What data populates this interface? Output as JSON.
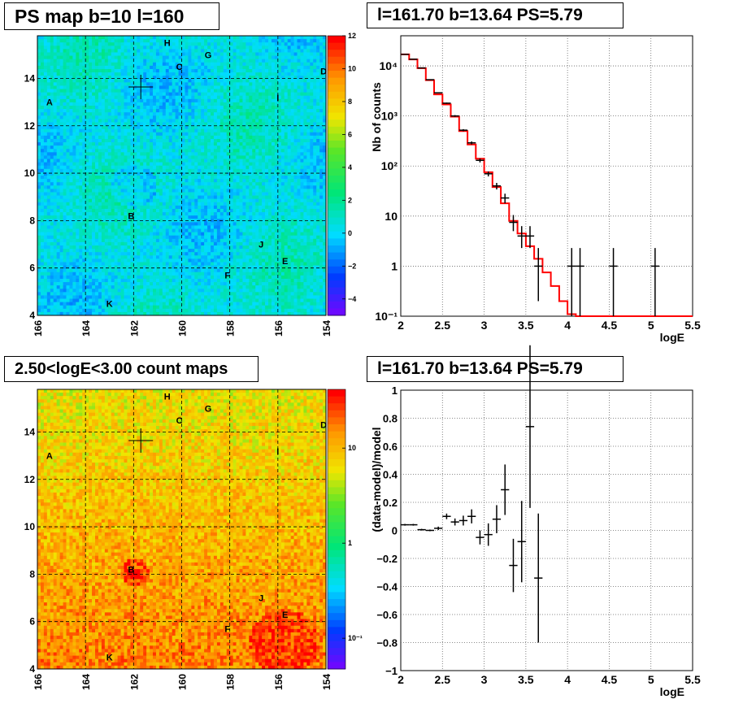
{
  "panels": {
    "ps_map": {
      "title": "PS map b=10 l=160"
    },
    "spectrum": {
      "title": "l=161.70 b=13.64 PS=5.79"
    },
    "count_map": {
      "title": "2.50<logE<3.00 count maps"
    },
    "residual": {
      "title": "l=161.70 b=13.64 PS=5.79"
    }
  },
  "colors": {
    "model_line": "#ff0000",
    "data_points": "#000000",
    "ps_map_base": "#00e0f0",
    "count_map_base": "#f0d000"
  },
  "chart_data": [
    {
      "type": "heatmap",
      "name": "ps_map",
      "title": "PS map b=10 l=160",
      "xlabel": "",
      "ylabel": "",
      "xlim": [
        166,
        154
      ],
      "ylim": [
        4,
        15.8
      ],
      "x_ticks": [
        "166",
        "164",
        "162",
        "160",
        "158",
        "156",
        "154"
      ],
      "y_ticks": [
        "4",
        "6",
        "8",
        "10",
        "12",
        "14"
      ],
      "colorbar": {
        "min": -5,
        "max": 12,
        "ticks": [
          "12",
          "10",
          "8",
          "6",
          "4",
          "2",
          "0",
          "−2",
          "−4"
        ]
      },
      "grid": true,
      "marker": {
        "l": 161.7,
        "b": 13.64
      },
      "source_labels": [
        {
          "label": "H",
          "l": 160.6,
          "b": 15.5
        },
        {
          "label": "G",
          "l": 158.9,
          "b": 15.0
        },
        {
          "label": "C",
          "l": 160.1,
          "b": 14.5
        },
        {
          "label": "D",
          "l": 154.1,
          "b": 14.3
        },
        {
          "label": "A",
          "l": 165.5,
          "b": 13.0
        },
        {
          "label": "I",
          "l": 156.0,
          "b": 13.2
        },
        {
          "label": "B",
          "l": 162.1,
          "b": 8.2
        },
        {
          "label": "J",
          "l": 156.7,
          "b": 7.0
        },
        {
          "label": "E",
          "l": 155.7,
          "b": 6.3
        },
        {
          "label": "F",
          "l": 158.1,
          "b": 5.7
        },
        {
          "label": "K",
          "l": 163.0,
          "b": 4.5
        }
      ]
    },
    {
      "type": "line",
      "name": "spectrum",
      "title": "l=161.70 b=13.64 PS=5.79",
      "xlabel": "logE",
      "ylabel": "Nb of counts",
      "xlim": [
        2,
        5.5
      ],
      "ylim": [
        0.1,
        40000
      ],
      "y_scale": "log",
      "x_ticks": [
        "2",
        "2.5",
        "3",
        "3.5",
        "4",
        "4.5",
        "5",
        "5.5"
      ],
      "y_ticks": [
        "10⁻¹",
        "1",
        "10",
        "10²",
        "10³",
        "10⁴"
      ],
      "grid": true,
      "series": [
        {
          "name": "model",
          "style": "step",
          "bin_edges": [
            2.0,
            2.1,
            2.2,
            2.3,
            2.4,
            2.5,
            2.6,
            2.7,
            2.8,
            2.9,
            3.0,
            3.1,
            3.2,
            3.3,
            3.4,
            3.5,
            3.6,
            3.7,
            3.8,
            3.9,
            4.0,
            4.1,
            4.2,
            5.5
          ],
          "values": [
            17000,
            13500,
            9000,
            5200,
            2700,
            1700,
            970,
            500,
            270,
            140,
            75,
            38,
            18,
            8,
            4.5,
            2.5,
            1.4,
            0.75,
            0.4,
            0.2,
            0.11,
            0.1,
            0.1
          ]
        },
        {
          "name": "data",
          "style": "points",
          "points": [
            {
              "x": 2.05,
              "y": 17000,
              "ylo": 17000,
              "yhi": 17000
            },
            {
              "x": 2.15,
              "y": 13600,
              "ylo": 13600,
              "yhi": 13600
            },
            {
              "x": 2.25,
              "y": 9100,
              "ylo": 9100,
              "yhi": 9100
            },
            {
              "x": 2.35,
              "y": 5300,
              "ylo": 5300,
              "yhi": 5300
            },
            {
              "x": 2.45,
              "y": 2900,
              "ylo": 2900,
              "yhi": 2900
            },
            {
              "x": 2.55,
              "y": 1800,
              "ylo": 1750,
              "yhi": 1850
            },
            {
              "x": 2.65,
              "y": 1000,
              "ylo": 960,
              "yhi": 1040
            },
            {
              "x": 2.75,
              "y": 520,
              "ylo": 495,
              "yhi": 545
            },
            {
              "x": 2.85,
              "y": 290,
              "ylo": 270,
              "yhi": 310
            },
            {
              "x": 2.95,
              "y": 130,
              "ylo": 118,
              "yhi": 142
            },
            {
              "x": 3.05,
              "y": 70,
              "ylo": 62,
              "yhi": 78
            },
            {
              "x": 3.15,
              "y": 40,
              "ylo": 34,
              "yhi": 46
            },
            {
              "x": 3.25,
              "y": 23,
              "ylo": 18,
              "yhi": 28
            },
            {
              "x": 3.35,
              "y": 7.5,
              "ylo": 5,
              "yhi": 10.5
            },
            {
              "x": 3.45,
              "y": 4,
              "ylo": 2.3,
              "yhi": 6.3
            },
            {
              "x": 3.55,
              "y": 4,
              "ylo": 2.3,
              "yhi": 6.3
            },
            {
              "x": 3.65,
              "y": 1,
              "ylo": 0.2,
              "yhi": 2.3
            },
            {
              "x": 4.05,
              "y": 1,
              "ylo": 0.1,
              "yhi": 2.3
            },
            {
              "x": 4.15,
              "y": 1,
              "ylo": 0.1,
              "yhi": 2.3
            },
            {
              "x": 4.55,
              "y": 1,
              "ylo": 0.1,
              "yhi": 2.3
            },
            {
              "x": 5.05,
              "y": 1,
              "ylo": 0.1,
              "yhi": 2.3
            }
          ]
        }
      ]
    },
    {
      "type": "heatmap",
      "name": "count_map",
      "title": "2.50<logE<3.00 count maps",
      "xlabel": "",
      "ylabel": "",
      "xlim": [
        166,
        154
      ],
      "ylim": [
        4,
        15.8
      ],
      "x_ticks": [
        "166",
        "164",
        "162",
        "160",
        "158",
        "156",
        "154"
      ],
      "y_ticks": [
        "4",
        "6",
        "8",
        "10",
        "12",
        "14"
      ],
      "colorbar": {
        "scale": "log",
        "ticks": [
          "10",
          "1",
          "10⁻¹"
        ]
      },
      "grid": true,
      "marker": {
        "l": 161.7,
        "b": 13.64
      },
      "source_labels": [
        {
          "label": "H",
          "l": 160.6,
          "b": 15.5
        },
        {
          "label": "G",
          "l": 158.9,
          "b": 15.0
        },
        {
          "label": "C",
          "l": 160.1,
          "b": 14.5
        },
        {
          "label": "D",
          "l": 154.1,
          "b": 14.3
        },
        {
          "label": "A",
          "l": 165.5,
          "b": 13.0
        },
        {
          "label": "I",
          "l": 156.0,
          "b": 13.2
        },
        {
          "label": "B",
          "l": 162.1,
          "b": 8.2
        },
        {
          "label": "J",
          "l": 156.7,
          "b": 7.0
        },
        {
          "label": "E",
          "l": 155.7,
          "b": 6.3
        },
        {
          "label": "F",
          "l": 158.1,
          "b": 5.7
        },
        {
          "label": "K",
          "l": 163.0,
          "b": 4.5
        }
      ]
    },
    {
      "type": "scatter",
      "name": "residual",
      "title": "l=161.70 b=13.64 PS=5.79",
      "xlabel": "logE",
      "ylabel": "(data-model)/model",
      "xlim": [
        2,
        5.5
      ],
      "ylim": [
        -1,
        1
      ],
      "x_ticks": [
        "2",
        "2.5",
        "3",
        "3.5",
        "4",
        "4.5",
        "5",
        "5.5"
      ],
      "y_ticks": [
        "−1",
        "−0.8",
        "−0.6",
        "−0.4",
        "−0.2",
        "0",
        "0.2",
        "0.4",
        "0.6",
        "0.8",
        "1"
      ],
      "grid": true,
      "series": [
        {
          "name": "residuals",
          "points": [
            {
              "x": 2.05,
              "y": 0.04,
              "err": 0.006
            },
            {
              "x": 2.15,
              "y": 0.04,
              "err": 0.006
            },
            {
              "x": 2.25,
              "y": 0.005,
              "err": 0.006
            },
            {
              "x": 2.35,
              "y": 0.0,
              "err": 0.006
            },
            {
              "x": 2.45,
              "y": 0.015,
              "err": 0.012
            },
            {
              "x": 2.55,
              "y": 0.1,
              "err": 0.02
            },
            {
              "x": 2.65,
              "y": 0.06,
              "err": 0.025
            },
            {
              "x": 2.75,
              "y": 0.07,
              "err": 0.035
            },
            {
              "x": 2.85,
              "y": 0.1,
              "err": 0.05
            },
            {
              "x": 2.95,
              "y": -0.05,
              "err": 0.05
            },
            {
              "x": 3.05,
              "y": -0.03,
              "err": 0.08
            },
            {
              "x": 3.15,
              "y": 0.08,
              "err": 0.1
            },
            {
              "x": 3.25,
              "y": 0.29,
              "err": 0.18
            },
            {
              "x": 3.35,
              "y": -0.25,
              "err": 0.19
            },
            {
              "x": 3.45,
              "y": -0.08,
              "err": 0.29
            },
            {
              "x": 3.55,
              "y": 0.74,
              "err": 0.58
            },
            {
              "x": 3.65,
              "y": -0.34,
              "err": 0.46
            }
          ]
        }
      ]
    }
  ]
}
